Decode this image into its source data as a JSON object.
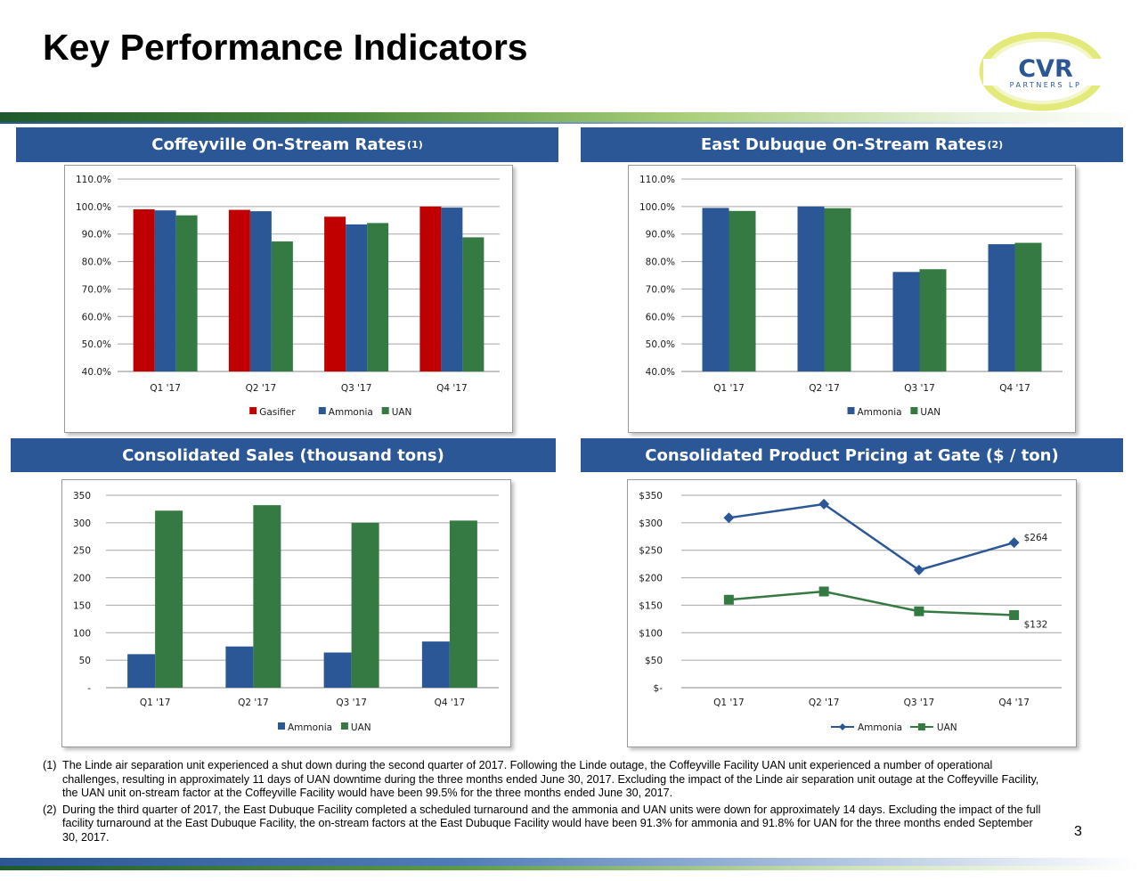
{
  "page": {
    "title": "Key Performance Indicators",
    "page_number": "3",
    "logo": {
      "text_main": "CVR",
      "text_sub": "PARTNERS LP"
    }
  },
  "colors": {
    "header_bg": "#2b5797",
    "gasifier": "#c00000",
    "ammonia": "#2b5797",
    "uan": "#357a42"
  },
  "panels": {
    "coffeyville": {
      "title": "Coffeyville On-Stream Rates",
      "sup": "(1)"
    },
    "east_dubuque": {
      "title": "East Dubuque On-Stream Rates",
      "sup": "(2)"
    },
    "sales": {
      "title": "Consolidated Sales (thousand tons)"
    },
    "pricing": {
      "title": "Consolidated Product Pricing at Gate ($ / ton)"
    }
  },
  "chart_data": [
    {
      "id": "coffeyville",
      "type": "bar",
      "categories": [
        "Q1 '17",
        "Q2 '17",
        "Q3 '17",
        "Q4 '17"
      ],
      "series": [
        {
          "name": "Gasifier",
          "color": "#c00000",
          "values": [
            99.0,
            98.8,
            96.3,
            100.0
          ]
        },
        {
          "name": "Ammonia",
          "color": "#2b5797",
          "values": [
            98.6,
            98.3,
            93.5,
            99.6
          ]
        },
        {
          "name": "UAN",
          "color": "#357a42",
          "values": [
            96.8,
            87.3,
            94.0,
            88.8
          ]
        }
      ],
      "ylim": [
        40,
        110
      ],
      "yticks": [
        "40.0%",
        "50.0%",
        "60.0%",
        "70.0%",
        "80.0%",
        "90.0%",
        "100.0%",
        "110.0%"
      ],
      "ytick_values": [
        40,
        50,
        60,
        70,
        80,
        90,
        100,
        110
      ],
      "legend": "bottom",
      "grid": true
    },
    {
      "id": "east_dubuque",
      "type": "bar",
      "categories": [
        "Q1 '17",
        "Q2 '17",
        "Q3 '17",
        "Q4 '17"
      ],
      "series": [
        {
          "name": "Ammonia",
          "color": "#2b5797",
          "values": [
            99.5,
            100.0,
            76.2,
            86.3
          ]
        },
        {
          "name": "UAN",
          "color": "#357a42",
          "values": [
            98.4,
            99.4,
            77.2,
            86.8
          ]
        }
      ],
      "ylim": [
        40,
        110
      ],
      "yticks": [
        "40.0%",
        "50.0%",
        "60.0%",
        "70.0%",
        "80.0%",
        "90.0%",
        "100.0%",
        "110.0%"
      ],
      "ytick_values": [
        40,
        50,
        60,
        70,
        80,
        90,
        100,
        110
      ],
      "legend": "bottom",
      "grid": true
    },
    {
      "id": "sales",
      "type": "bar",
      "categories": [
        "Q1 '17",
        "Q2 '17",
        "Q3 '17",
        "Q4 '17"
      ],
      "series": [
        {
          "name": "Ammonia",
          "color": "#2b5797",
          "values": [
            61,
            75,
            64,
            84
          ]
        },
        {
          "name": "UAN",
          "color": "#357a42",
          "values": [
            322,
            332,
            300,
            304
          ]
        }
      ],
      "ylim": [
        0,
        350
      ],
      "yticks": [
        "-",
        "50",
        "100",
        "150",
        "200",
        "250",
        "300",
        "350"
      ],
      "ytick_values": [
        0,
        50,
        100,
        150,
        200,
        250,
        300,
        350
      ],
      "legend": "bottom",
      "grid": true
    },
    {
      "id": "pricing",
      "type": "line",
      "categories": [
        "Q1 '17",
        "Q2 '17",
        "Q3 '17",
        "Q4 '17"
      ],
      "series": [
        {
          "name": "Ammonia",
          "color": "#2b5797",
          "marker": "diamond",
          "values": [
            309,
            334,
            214,
            264
          ]
        },
        {
          "name": "UAN",
          "color": "#357a42",
          "marker": "square",
          "values": [
            160,
            175,
            139,
            132
          ]
        }
      ],
      "data_labels": [
        {
          "series": "Ammonia",
          "index": 3,
          "text": "$264"
        },
        {
          "series": "UAN",
          "index": 3,
          "text": "$132"
        }
      ],
      "ylim": [
        0,
        350
      ],
      "yticks": [
        "$-",
        "$50",
        "$100",
        "$150",
        "$200",
        "$250",
        "$300",
        "$350"
      ],
      "ytick_values": [
        0,
        50,
        100,
        150,
        200,
        250,
        300,
        350
      ],
      "legend": "bottom",
      "grid": true
    }
  ],
  "footnotes": [
    {
      "num": "(1)",
      "text": "The Linde air separation unit experienced a shut down during the second quarter of 2017. Following the Linde outage, the Coffeyville Facility UAN unit experienced a number of operational challenges, resulting in approximately 11 days of UAN downtime during the three months ended June 30, 2017. Excluding the impact of the Linde air separation unit outage at the Coffeyville Facility, the UAN unit on-stream factor at the Coffeyville Facility would have been 99.5% for the three months ended June 30, 2017."
    },
    {
      "num": "(2)",
      "text": "During the third quarter of 2017, the East Dubuque Facility completed a scheduled turnaround and the ammonia and UAN units were down for approximately 14 days. Excluding the impact of the full facility turnaround at the East Dubuque Facility, the on-stream factors at the East Dubuque Facility would have been 91.3% for ammonia and 91.8% for UAN for the three months ended September 30, 2017."
    }
  ]
}
